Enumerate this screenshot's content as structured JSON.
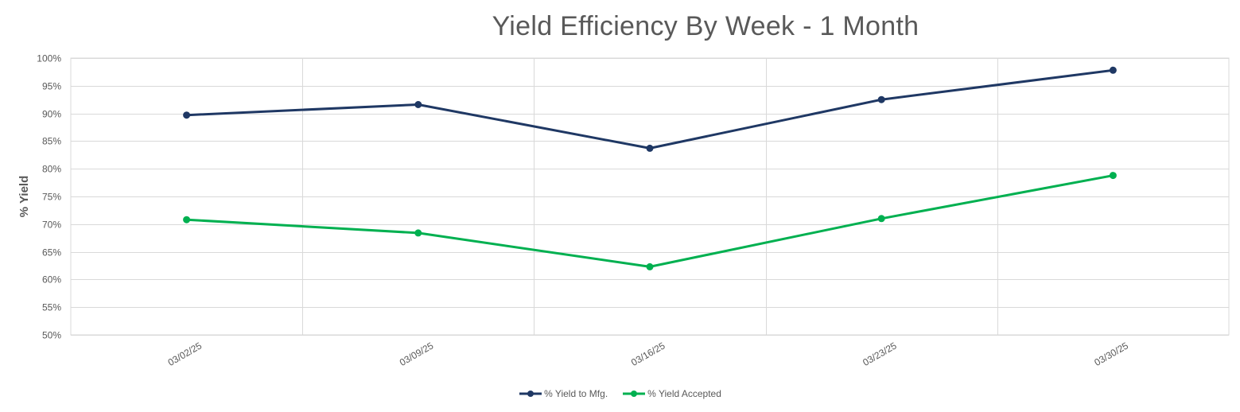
{
  "chart_data": {
    "type": "line",
    "title": "Yield Efficiency By Week - 1 Month",
    "xlabel": "",
    "ylabel": "% Yield",
    "categories": [
      "03/02/25",
      "03/09/25",
      "03/16/25",
      "03/23/25",
      "03/30/25"
    ],
    "ylim": [
      50,
      100
    ],
    "yticks": [
      50,
      55,
      60,
      65,
      70,
      75,
      80,
      85,
      90,
      95,
      100
    ],
    "ytick_labels": [
      "50%",
      "55%",
      "60%",
      "65%",
      "70%",
      "75%",
      "80%",
      "85%",
      "90%",
      "95%",
      "100%"
    ],
    "grid": true,
    "legend_position": "bottom",
    "series": [
      {
        "name": "% Yield to Mfg.",
        "color": "#1F3864",
        "values": [
          89.7,
          91.6,
          83.7,
          92.5,
          97.8
        ]
      },
      {
        "name": "% Yield Accepted",
        "color": "#00B050",
        "values": [
          70.8,
          68.4,
          62.3,
          71.0,
          78.8
        ]
      }
    ]
  }
}
